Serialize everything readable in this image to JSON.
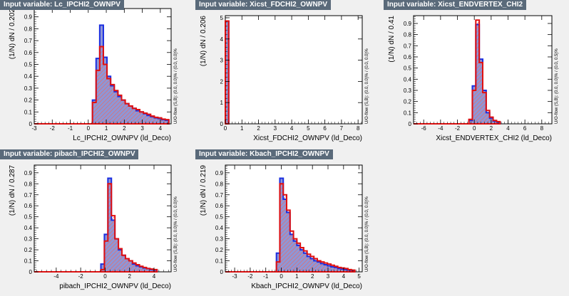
{
  "colors": {
    "signal": "#1a2ee0",
    "background": "#e01010",
    "signal_fill": "#8d96d8",
    "background_hatch": "#e07070",
    "title_bg": "#5a6a7a"
  },
  "chart_data": [
    {
      "type": "histogram",
      "title": "Input variable: Lc_IPCHI2_OWNPV",
      "xlabel": "Lc_IPCHI2_OWNPV (ld_Deco)",
      "ylabel": "(1/N) dN / 0.202",
      "uoflow": "U/O-flow (S,B): (0.0, 0.0)% / (0.0, 0.0)%",
      "xlim": [
        -3,
        4.6
      ],
      "ylim": [
        0,
        0.97
      ],
      "xticks": [
        -3,
        -2,
        -1,
        0,
        1,
        2,
        3,
        4
      ],
      "yticks": [
        0,
        0.1,
        0.2,
        0.3,
        0.4,
        0.5,
        0.6,
        0.7,
        0.8,
        0.9
      ],
      "bin_start": -3,
      "bin_width": 0.202,
      "signal": [
        0,
        0,
        0,
        0,
        0,
        0,
        0,
        0,
        0,
        0,
        0,
        0,
        0,
        0,
        0,
        0,
        0.2,
        0.55,
        0.83,
        0.56,
        0.4,
        0.32,
        0.27,
        0.23,
        0.2,
        0.17,
        0.15,
        0.13,
        0.11,
        0.1,
        0.085,
        0.07,
        0.06,
        0.05,
        0.045,
        0.035,
        0.03
      ],
      "background": [
        0,
        0,
        0,
        0,
        0,
        0,
        0,
        0,
        0,
        0,
        0,
        0,
        0,
        0,
        0,
        0,
        0.18,
        0.45,
        0.65,
        0.5,
        0.38,
        0.33,
        0.28,
        0.24,
        0.2,
        0.17,
        0.15,
        0.13,
        0.12,
        0.1,
        0.09,
        0.08,
        0.065,
        0.055,
        0.05,
        0.04,
        0.035
      ]
    },
    {
      "type": "histogram",
      "title": "Input variable: Xicst_FDCHI2_OWNPV",
      "xlabel": "Xicst_FDCHI2_OWNPV (ld_Deco)",
      "ylabel": "(1/N) dN / 0.206",
      "uoflow": "U/O-flow (S,B): (0.0, 0.0)% / (0.0, 0.0)%",
      "xlim": [
        0,
        8.25
      ],
      "ylim": [
        0,
        5.1
      ],
      "xticks": [
        0,
        1,
        2,
        3,
        4,
        5,
        6,
        7,
        8
      ],
      "yticks": [
        0,
        1,
        2,
        3,
        4,
        5
      ],
      "bin_start": 0,
      "bin_width": 0.206,
      "signal": [
        4.85
      ],
      "background": [
        4.85
      ]
    },
    {
      "type": "histogram",
      "title": "Input variable: Xicst_ENDVERTEX_CHI2",
      "xlabel": "Xicst_ENDVERTEX_CHI2 (ld_Deco)",
      "ylabel": "(1/N) dN / 0.41",
      "uoflow": "U/O-flow (S,B): (0.0, 0.0)% / (0.0, 0.5)%",
      "xlim": [
        -7.2,
        9.2
      ],
      "ylim": [
        0,
        0.97
      ],
      "xticks": [
        -6,
        -4,
        -2,
        0,
        2,
        4,
        6,
        8
      ],
      "yticks": [
        0,
        0.1,
        0.2,
        0.3,
        0.4,
        0.5,
        0.6,
        0.7,
        0.8,
        0.9
      ],
      "bin_start": -7.2,
      "bin_width": 0.41,
      "signal": [
        0,
        0,
        0,
        0,
        0,
        0,
        0,
        0,
        0,
        0,
        0,
        0,
        0,
        0,
        0,
        0,
        0.03,
        0.34,
        0.89,
        0.58,
        0.3,
        0.1,
        0.05,
        0.025,
        0.015
      ],
      "background": [
        0,
        0,
        0,
        0,
        0,
        0,
        0,
        0,
        0,
        0,
        0,
        0,
        0,
        0,
        0,
        0,
        0.04,
        0.3,
        0.93,
        0.55,
        0.28,
        0.12,
        0.06,
        0.03,
        0.02
      ]
    },
    {
      "type": "histogram",
      "title": "Input variable: pibach_IPCHI2_OWNPV",
      "xlabel": "pibach_IPCHI2_OWNPV (ld_Deco)",
      "ylabel": "(1/N) dN / 0.287",
      "uoflow": "U/O-flow (S,B): (0.0, 0.0)% / (0.0, 0.0)%",
      "xlim": [
        -5.8,
        5.4
      ],
      "ylim": [
        0,
        0.97
      ],
      "xticks": [
        -4,
        -2,
        0,
        2,
        4
      ],
      "yticks": [
        0,
        0.1,
        0.2,
        0.3,
        0.4,
        0.5,
        0.6,
        0.7,
        0.8,
        0.9
      ],
      "bin_start": -5.8,
      "bin_width": 0.287,
      "signal": [
        0,
        0,
        0,
        0,
        0,
        0,
        0,
        0,
        0,
        0,
        0,
        0,
        0,
        0,
        0,
        0,
        0,
        0,
        0,
        0.07,
        0.34,
        0.85,
        0.47,
        0.3,
        0.2,
        0.15,
        0.12,
        0.1,
        0.07,
        0.055,
        0.045,
        0.035,
        0.03,
        0.02,
        0.015
      ],
      "background": [
        0,
        0,
        0,
        0,
        0,
        0,
        0,
        0,
        0,
        0,
        0,
        0,
        0,
        0,
        0,
        0,
        0,
        0,
        0,
        0.02,
        0.28,
        0.8,
        0.51,
        0.3,
        0.21,
        0.15,
        0.12,
        0.1,
        0.08,
        0.065,
        0.05,
        0.04,
        0.03,
        0.025,
        0.02
      ]
    },
    {
      "type": "histogram",
      "title": "Input variable: Kbach_IPCHI2_OWNPV",
      "xlabel": "Kbach_IPCHI2_OWNPV (ld_Deco)",
      "ylabel": "(1/N) dN / 0.219",
      "uoflow": "U/O-flow (S,B): (0.0, 0.0)% / (0.0, 0.0)%",
      "xlim": [
        -3.6,
        5.2
      ],
      "ylim": [
        0,
        0.97
      ],
      "xticks": [
        -3,
        -2,
        -1,
        0,
        1,
        2,
        3,
        4,
        5
      ],
      "yticks": [
        0,
        0.1,
        0.2,
        0.3,
        0.4,
        0.5,
        0.6,
        0.7,
        0.8,
        0.9
      ],
      "bin_start": -3.6,
      "bin_width": 0.219,
      "signal": [
        0,
        0,
        0,
        0,
        0,
        0,
        0,
        0,
        0,
        0,
        0,
        0,
        0,
        0,
        0,
        0.17,
        0.85,
        0.66,
        0.54,
        0.34,
        0.28,
        0.24,
        0.2,
        0.17,
        0.14,
        0.12,
        0.1,
        0.09,
        0.075,
        0.065,
        0.055,
        0.045,
        0.04,
        0.03,
        0.025,
        0.02,
        0.015,
        0.01
      ],
      "background": [
        0,
        0,
        0,
        0,
        0,
        0,
        0,
        0,
        0,
        0,
        0,
        0,
        0,
        0,
        0,
        0.09,
        0.8,
        0.7,
        0.56,
        0.37,
        0.3,
        0.26,
        0.22,
        0.19,
        0.16,
        0.14,
        0.12,
        0.1,
        0.09,
        0.08,
        0.07,
        0.06,
        0.05,
        0.04,
        0.035,
        0.03,
        0.02,
        0.015
      ]
    }
  ]
}
